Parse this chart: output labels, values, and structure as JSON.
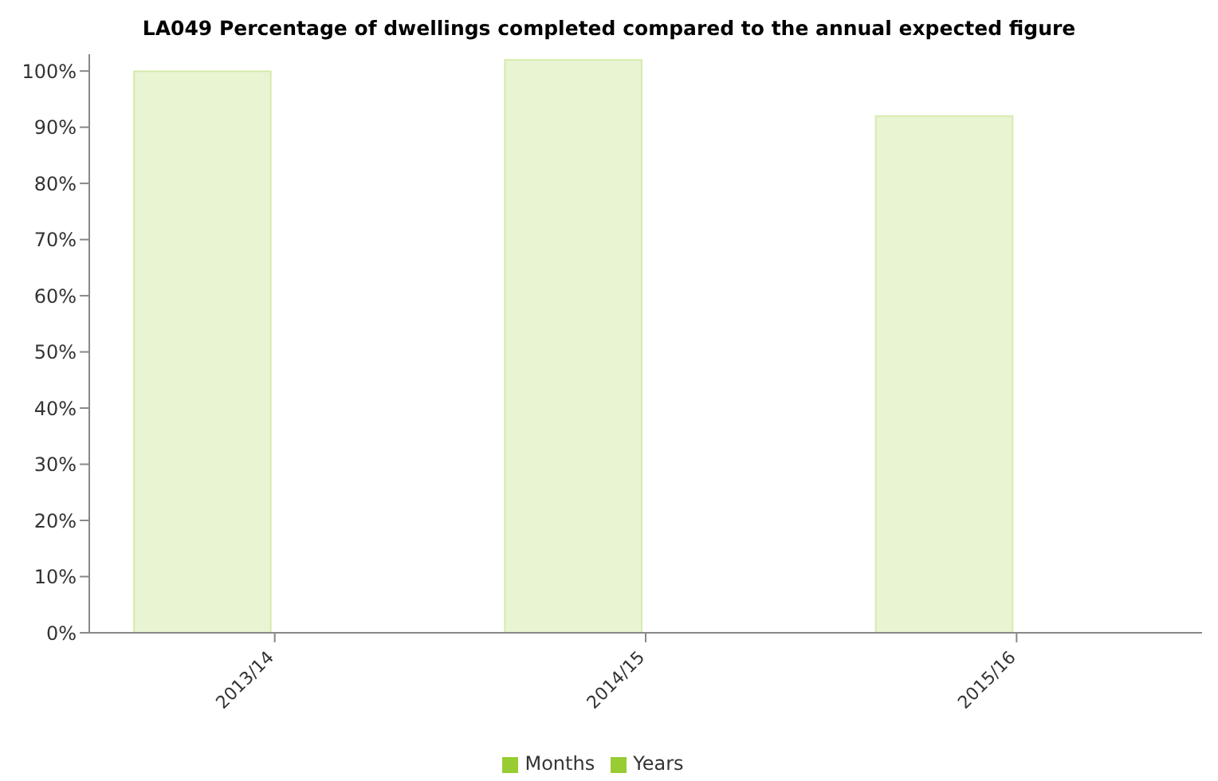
{
  "chart_data": {
    "type": "bar",
    "title": "LA049 Percentage of dwellings completed compared to the annual expected figure",
    "categories": [
      "2013/14",
      "2014/15",
      "2015/16"
    ],
    "series": [
      {
        "name": "Years",
        "color": "#99cc33",
        "values": [
          100,
          102,
          92
        ]
      },
      {
        "name": "Months",
        "color": "#99cc33",
        "values": [
          null,
          null,
          null
        ]
      }
    ],
    "ylim": [
      0,
      103
    ],
    "yticks": [
      {
        "value": 0,
        "label": "0%"
      },
      {
        "value": 10,
        "label": "10%"
      },
      {
        "value": 20,
        "label": "20%"
      },
      {
        "value": 30,
        "label": "30%"
      },
      {
        "value": 40,
        "label": "40%"
      },
      {
        "value": 50,
        "label": "50%"
      },
      {
        "value": 60,
        "label": "60%"
      },
      {
        "value": 70,
        "label": "70%"
      },
      {
        "value": 80,
        "label": "80%"
      },
      {
        "value": 90,
        "label": "90%"
      },
      {
        "value": 100,
        "label": "100%"
      }
    ],
    "grid": false,
    "legend": "bottom"
  }
}
